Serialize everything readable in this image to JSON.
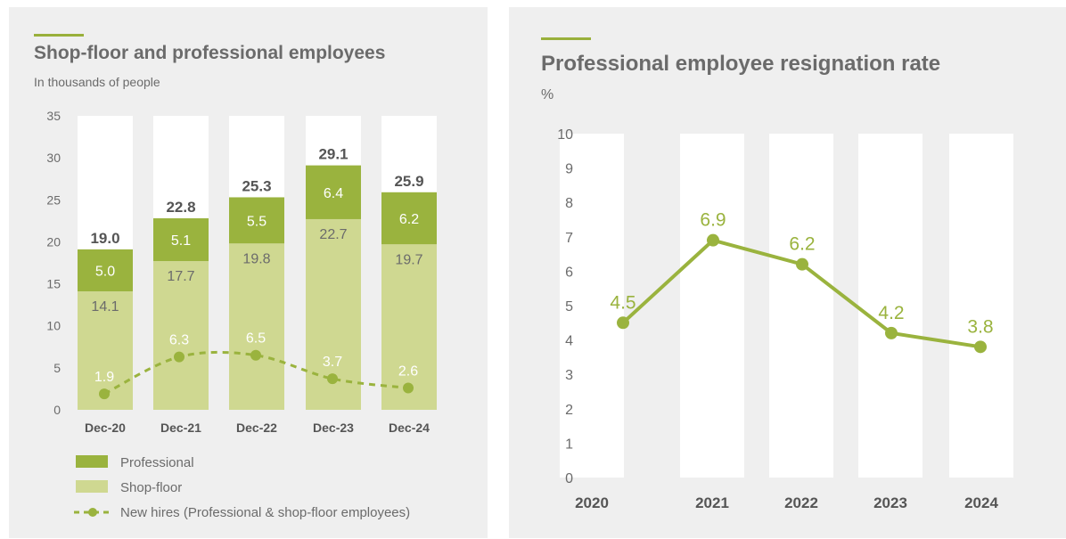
{
  "colors": {
    "accent": "#99b03b",
    "professional": "#9ab33e",
    "shopfloor": "#cfd891",
    "line": "#9ab33e",
    "text": "#6b6b6b",
    "panel_bg": "#efefef",
    "column_bg": "#ffffff"
  },
  "chart_data": [
    {
      "type": "bar",
      "stacked": true,
      "title": "Shop-floor and professional employees",
      "subtitle": "In thousands of people",
      "categories": [
        "Dec-20",
        "Dec-21",
        "Dec-22",
        "Dec-23",
        "Dec-24"
      ],
      "ylim": [
        0,
        35
      ],
      "yticks": [
        0,
        5,
        10,
        15,
        20,
        25,
        30,
        35
      ],
      "series": [
        {
          "name": "Shop-floor",
          "values": [
            14.1,
            17.7,
            19.8,
            22.7,
            19.7
          ]
        },
        {
          "name": "Professional",
          "values": [
            5.0,
            5.1,
            5.5,
            6.4,
            6.2
          ]
        }
      ],
      "totals": [
        19.0,
        22.8,
        25.3,
        29.1,
        25.9
      ],
      "overlay_line": {
        "name": "New hires (Professional & shop-floor employees)",
        "style": "dashed",
        "values": [
          1.9,
          6.3,
          6.5,
          3.7,
          2.6
        ]
      },
      "legend": [
        "Professional",
        "Shop-floor",
        "New hires (Professional & shop-floor employees)"
      ],
      "legend_position": "bottom-left"
    },
    {
      "type": "line",
      "title": "Professional employee resignation rate",
      "subtitle": "%",
      "categories": [
        "2020",
        "2021",
        "2022",
        "2023",
        "2024"
      ],
      "ylim": [
        0,
        10
      ],
      "yticks": [
        0,
        1,
        2,
        3,
        4,
        5,
        6,
        7,
        8,
        9,
        10
      ],
      "values": [
        4.5,
        6.9,
        6.2,
        4.2,
        3.8
      ]
    }
  ]
}
